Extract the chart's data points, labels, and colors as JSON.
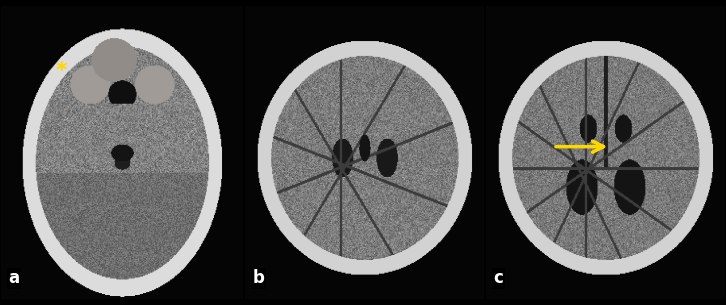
{
  "label_a": "a",
  "label_b": "b",
  "label_c": "c",
  "asterisk_text": "*",
  "asterisk_color": "#FFD700",
  "arrow_color": "#FFD700",
  "label_color": "#FFFFFF",
  "background_color": "#000000",
  "fig_width": 7.26,
  "fig_height": 3.05,
  "dpi": 100
}
